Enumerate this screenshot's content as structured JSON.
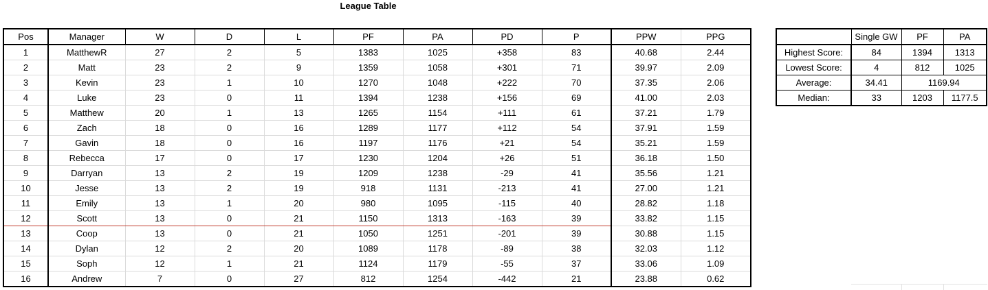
{
  "title": "League Table",
  "league": {
    "headers": [
      "Pos",
      "Manager",
      "W",
      "D",
      "L",
      "PF",
      "PA",
      "PD",
      "P",
      "PPW",
      "PPG"
    ],
    "cutoff_after_pos": 12,
    "rows": [
      [
        "1",
        "MatthewR",
        "27",
        "2",
        "5",
        "1383",
        "1025",
        "+358",
        "83",
        "40.68",
        "2.44"
      ],
      [
        "2",
        "Matt",
        "23",
        "2",
        "9",
        "1359",
        "1058",
        "+301",
        "71",
        "39.97",
        "2.09"
      ],
      [
        "3",
        "Kevin",
        "23",
        "1",
        "10",
        "1270",
        "1048",
        "+222",
        "70",
        "37.35",
        "2.06"
      ],
      [
        "4",
        "Luke",
        "23",
        "0",
        "11",
        "1394",
        "1238",
        "+156",
        "69",
        "41.00",
        "2.03"
      ],
      [
        "5",
        "Matthew",
        "20",
        "1",
        "13",
        "1265",
        "1154",
        "+111",
        "61",
        "37.21",
        "1.79"
      ],
      [
        "6",
        "Zach",
        "18",
        "0",
        "16",
        "1289",
        "1177",
        "+112",
        "54",
        "37.91",
        "1.59"
      ],
      [
        "7",
        "Gavin",
        "18",
        "0",
        "16",
        "1197",
        "1176",
        "+21",
        "54",
        "35.21",
        "1.59"
      ],
      [
        "8",
        "Rebecca",
        "17",
        "0",
        "17",
        "1230",
        "1204",
        "+26",
        "51",
        "36.18",
        "1.50"
      ],
      [
        "9",
        "Darryan",
        "13",
        "2",
        "19",
        "1209",
        "1238",
        "-29",
        "41",
        "35.56",
        "1.21"
      ],
      [
        "10",
        "Jesse",
        "13",
        "2",
        "19",
        "918",
        "1131",
        "-213",
        "41",
        "27.00",
        "1.21"
      ],
      [
        "11",
        "Emily",
        "13",
        "1",
        "20",
        "980",
        "1095",
        "-115",
        "40",
        "28.82",
        "1.18"
      ],
      [
        "12",
        "Scott",
        "13",
        "0",
        "21",
        "1150",
        "1313",
        "-163",
        "39",
        "33.82",
        "1.15"
      ],
      [
        "13",
        "Coop",
        "13",
        "0",
        "21",
        "1050",
        "1251",
        "-201",
        "39",
        "30.88",
        "1.15"
      ],
      [
        "14",
        "Dylan",
        "12",
        "2",
        "20",
        "1089",
        "1178",
        "-89",
        "38",
        "32.03",
        "1.12"
      ],
      [
        "15",
        "Soph",
        "12",
        "1",
        "21",
        "1124",
        "1179",
        "-55",
        "37",
        "33.06",
        "1.09"
      ],
      [
        "16",
        "Andrew",
        "7",
        "0",
        "27",
        "812",
        "1254",
        "-442",
        "21",
        "23.88",
        "0.62"
      ]
    ]
  },
  "stats": {
    "headers": [
      "",
      "Single GW",
      "PF",
      "PA"
    ],
    "highest": {
      "label": "Highest Score:",
      "gw": "84",
      "pf": "1394",
      "pa": "1313"
    },
    "lowest": {
      "label": "Lowest Score:",
      "gw": "4",
      "pf": "812",
      "pa": "1025"
    },
    "average": {
      "label": "Average:",
      "gw": "34.41",
      "pfpa": "1169.94"
    },
    "median": {
      "label": "Median:",
      "gw": "33",
      "pf": "1203",
      "pa": "1177.5"
    }
  }
}
